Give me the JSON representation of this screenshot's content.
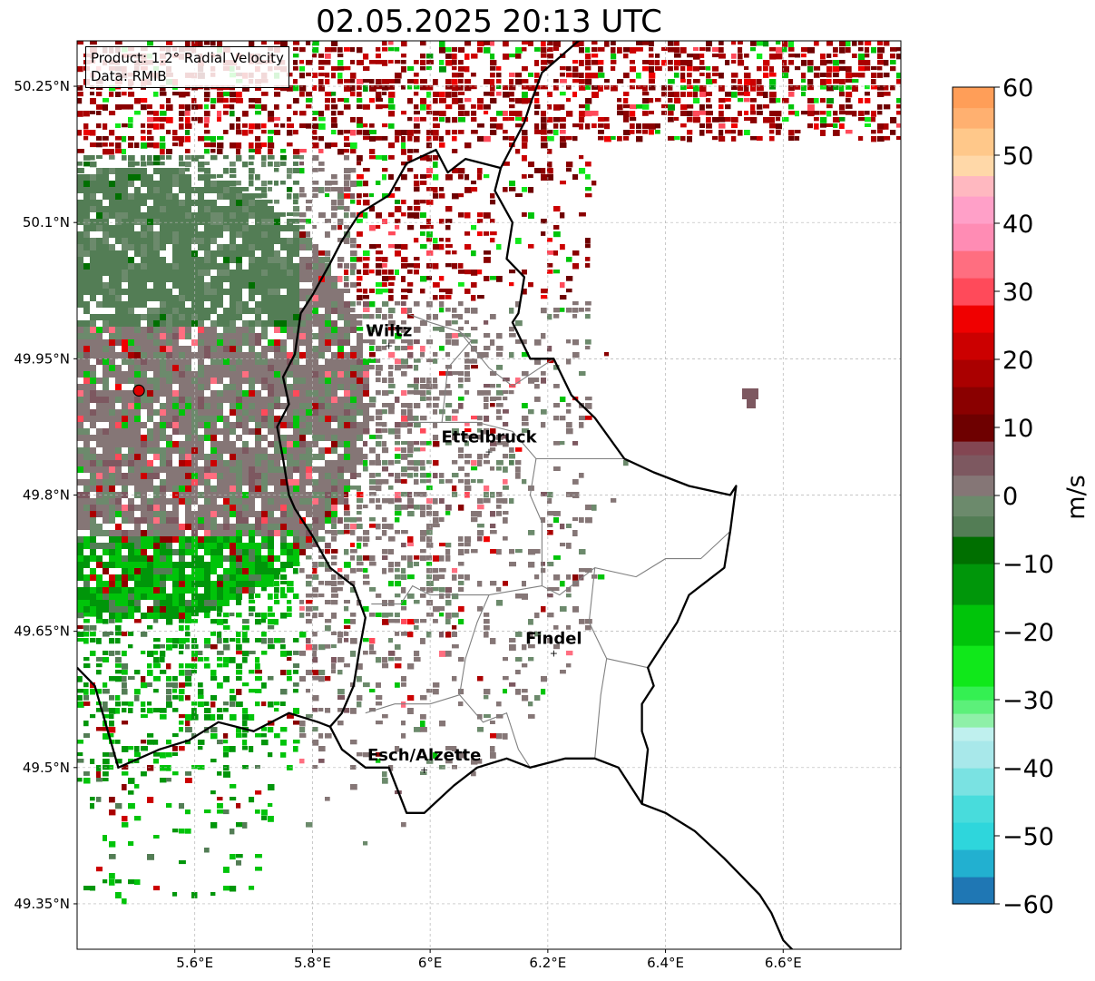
{
  "title": "02.05.2025 20:13 UTC",
  "info_box": {
    "product": "Product: 1.2° Radial Velocity",
    "data_source": "Data: RMIB"
  },
  "map": {
    "lon_range": [
      5.4,
      6.8
    ],
    "lat_range": [
      49.3,
      50.3
    ],
    "gridlines": true,
    "lon_ticks": [
      {
        "value": 5.6,
        "label": "5.6°E"
      },
      {
        "value": 5.8,
        "label": "5.8°E"
      },
      {
        "value": 6.0,
        "label": "6°E"
      },
      {
        "value": 6.2,
        "label": "6.2°E"
      },
      {
        "value": 6.4,
        "label": "6.4°E"
      },
      {
        "value": 6.6,
        "label": "6.6°E"
      }
    ],
    "lat_ticks": [
      {
        "value": 50.25,
        "label": "50.25°N"
      },
      {
        "value": 50.1,
        "label": "50.1°N"
      },
      {
        "value": 49.95,
        "label": "49.95°N"
      },
      {
        "value": 49.8,
        "label": "49.8°N"
      },
      {
        "value": 49.65,
        "label": "49.65°N"
      },
      {
        "value": 49.5,
        "label": "49.5°N"
      },
      {
        "value": 49.35,
        "label": "49.35°N"
      }
    ],
    "radar_site": {
      "lon": 5.505,
      "lat": 49.915,
      "color": "#e00000"
    },
    "cities": [
      {
        "name": "Wiltz",
        "lon": 5.93,
        "lat": 49.965
      },
      {
        "name": "Ettelbruck",
        "lon": 6.1,
        "lat": 49.848
      },
      {
        "name": "Findel",
        "lon": 6.21,
        "lat": 49.626
      },
      {
        "name": "Esch/Alzette",
        "lon": 5.99,
        "lat": 49.498
      }
    ],
    "border": [
      [
        5.96,
        50.165
      ],
      [
        6.01,
        50.18
      ],
      [
        6.03,
        50.155
      ],
      [
        6.06,
        50.17
      ],
      [
        6.12,
        50.16
      ],
      [
        6.11,
        50.135
      ],
      [
        6.14,
        50.1
      ],
      [
        6.13,
        50.06
      ],
      [
        6.16,
        50.04
      ],
      [
        6.15,
        50.0
      ],
      [
        6.14,
        49.99
      ],
      [
        6.17,
        49.95
      ],
      [
        6.21,
        49.95
      ],
      [
        6.24,
        49.91
      ],
      [
        6.28,
        49.885
      ],
      [
        6.33,
        49.84
      ],
      [
        6.38,
        49.825
      ],
      [
        6.44,
        49.81
      ],
      [
        6.51,
        49.8
      ],
      [
        6.52,
        49.81
      ],
      [
        6.51,
        49.76
      ],
      [
        6.5,
        49.72
      ],
      [
        6.44,
        49.69
      ],
      [
        6.42,
        49.66
      ],
      [
        6.37,
        49.61
      ],
      [
        6.38,
        49.59
      ],
      [
        6.36,
        49.57
      ],
      [
        6.36,
        49.54
      ],
      [
        6.37,
        49.52
      ],
      [
        6.36,
        49.46
      ],
      [
        6.32,
        49.5
      ],
      [
        6.28,
        49.51
      ],
      [
        6.23,
        49.51
      ],
      [
        6.17,
        49.5
      ],
      [
        6.13,
        49.51
      ],
      [
        6.08,
        49.5
      ],
      [
        6.04,
        49.48
      ],
      [
        5.99,
        49.45
      ],
      [
        5.96,
        49.45
      ],
      [
        5.93,
        49.5
      ],
      [
        5.89,
        49.5
      ],
      [
        5.85,
        49.52
      ],
      [
        5.83,
        49.545
      ],
      [
        5.85,
        49.56
      ],
      [
        5.87,
        49.59
      ],
      [
        5.88,
        49.63
      ],
      [
        5.89,
        49.665
      ],
      [
        5.87,
        49.7
      ],
      [
        5.83,
        49.72
      ],
      [
        5.8,
        49.755
      ],
      [
        5.77,
        49.785
      ],
      [
        5.76,
        49.8
      ],
      [
        5.75,
        49.84
      ],
      [
        5.74,
        49.875
      ],
      [
        5.76,
        49.9
      ],
      [
        5.75,
        49.93
      ],
      [
        5.77,
        49.955
      ],
      [
        5.78,
        50.0
      ],
      [
        5.8,
        50.02
      ],
      [
        5.83,
        50.055
      ],
      [
        5.85,
        50.08
      ],
      [
        5.87,
        50.1
      ],
      [
        5.88,
        50.11
      ],
      [
        5.93,
        50.13
      ],
      [
        5.96,
        50.165
      ]
    ],
    "border_north": [
      [
        6.12,
        50.16
      ],
      [
        6.16,
        50.21
      ],
      [
        6.17,
        50.23
      ],
      [
        6.19,
        50.265
      ],
      [
        6.27,
        50.31
      ]
    ],
    "border_france": [
      [
        5.4,
        49.61
      ],
      [
        5.43,
        49.59
      ],
      [
        5.47,
        49.5
      ],
      [
        5.54,
        49.52
      ],
      [
        5.59,
        49.53
      ],
      [
        5.64,
        49.55
      ],
      [
        5.7,
        49.54
      ],
      [
        5.76,
        49.56
      ],
      [
        5.81,
        49.55
      ],
      [
        5.83,
        49.545
      ]
    ],
    "border_southeast": [
      [
        6.36,
        49.46
      ],
      [
        6.4,
        49.45
      ],
      [
        6.45,
        49.43
      ],
      [
        6.5,
        49.4
      ],
      [
        6.56,
        49.36
      ],
      [
        6.58,
        49.34
      ],
      [
        6.6,
        49.31
      ],
      [
        6.63,
        49.29
      ]
    ],
    "cantons": [
      [
        [
          5.96,
          50.0
        ],
        [
          6.0,
          49.99
        ],
        [
          6.05,
          49.98
        ],
        [
          6.07,
          49.97
        ],
        [
          6.03,
          49.94
        ],
        [
          6.02,
          49.88
        ]
      ],
      [
        [
          5.95,
          49.88
        ],
        [
          6.02,
          49.88
        ],
        [
          6.08,
          49.88
        ],
        [
          6.14,
          49.87
        ],
        [
          6.18,
          49.84
        ],
        [
          6.25,
          49.84
        ],
        [
          6.33,
          49.84
        ]
      ],
      [
        [
          6.05,
          49.98
        ],
        [
          6.1,
          49.94
        ],
        [
          6.14,
          49.92
        ],
        [
          6.21,
          49.95
        ]
      ],
      [
        [
          6.18,
          49.84
        ],
        [
          6.17,
          49.8
        ],
        [
          6.19,
          49.77
        ],
        [
          6.19,
          49.7
        ],
        [
          6.22,
          49.69
        ],
        [
          6.28,
          49.72
        ],
        [
          6.35,
          49.71
        ],
        [
          6.4,
          49.73
        ],
        [
          6.46,
          49.73
        ],
        [
          6.51,
          49.76
        ]
      ],
      [
        [
          6.19,
          49.7
        ],
        [
          6.1,
          49.69
        ],
        [
          6.05,
          49.69
        ],
        [
          6.0,
          49.69
        ],
        [
          5.97,
          49.7
        ],
        [
          5.95,
          49.68
        ],
        [
          5.9,
          49.68
        ]
      ],
      [
        [
          6.1,
          49.69
        ],
        [
          6.08,
          49.66
        ],
        [
          6.06,
          49.62
        ],
        [
          6.05,
          49.58
        ],
        [
          6.09,
          49.55
        ],
        [
          6.13,
          49.56
        ],
        [
          6.15,
          49.52
        ],
        [
          6.17,
          49.5
        ]
      ],
      [
        [
          6.28,
          49.72
        ],
        [
          6.27,
          49.66
        ],
        [
          6.3,
          49.62
        ],
        [
          6.29,
          49.58
        ],
        [
          6.28,
          49.51
        ]
      ],
      [
        [
          6.05,
          49.58
        ],
        [
          6.0,
          49.57
        ],
        [
          5.94,
          49.57
        ],
        [
          5.89,
          49.56
        ]
      ],
      [
        [
          6.3,
          49.62
        ],
        [
          6.37,
          49.61
        ]
      ]
    ]
  },
  "colorbar": {
    "label": "m/s",
    "range": [
      -60,
      60
    ],
    "ticks": [
      60,
      50,
      40,
      30,
      20,
      10,
      0,
      -10,
      -20,
      -30,
      -40,
      -50,
      -60
    ],
    "tick_labels": [
      "60",
      "50",
      "40",
      "30",
      "20",
      "10",
      "0",
      "−10",
      "−20",
      "−30",
      "−40",
      "−50",
      "−60"
    ],
    "bands": [
      {
        "from": -60,
        "to": -56,
        "color": "#1f77b4"
      },
      {
        "from": -56,
        "to": -52,
        "color": "#22b0d0"
      },
      {
        "from": -52,
        "to": -48,
        "color": "#2ed6dc"
      },
      {
        "from": -48,
        "to": -44,
        "color": "#48dcdc"
      },
      {
        "from": -44,
        "to": -40,
        "color": "#7ae2e2"
      },
      {
        "from": -40,
        "to": -36,
        "color": "#a8e8ea"
      },
      {
        "from": -36,
        "to": -34,
        "color": "#bff0ee"
      },
      {
        "from": -34,
        "to": -32,
        "color": "#8ef0a8"
      },
      {
        "from": -32,
        "to": -30,
        "color": "#5cf07a"
      },
      {
        "from": -30,
        "to": -28,
        "color": "#34f052"
      },
      {
        "from": -28,
        "to": -22,
        "color": "#10e81a"
      },
      {
        "from": -22,
        "to": -16,
        "color": "#00c40a"
      },
      {
        "from": -16,
        "to": -10,
        "color": "#00960a"
      },
      {
        "from": -10,
        "to": -6,
        "color": "#006f00"
      },
      {
        "from": -6,
        "to": -3,
        "color": "#537d55"
      },
      {
        "from": -3,
        "to": 0,
        "color": "#6c8a6c"
      },
      {
        "from": 0,
        "to": 3,
        "color": "#857676"
      },
      {
        "from": 3,
        "to": 6,
        "color": "#7d5860"
      },
      {
        "from": 6,
        "to": 8,
        "color": "#834652"
      },
      {
        "from": 8,
        "to": 12,
        "color": "#6e0000"
      },
      {
        "from": 12,
        "to": 16,
        "color": "#8a0000"
      },
      {
        "from": 16,
        "to": 20,
        "color": "#aa0000"
      },
      {
        "from": 20,
        "to": 24,
        "color": "#cc0000"
      },
      {
        "from": 24,
        "to": 28,
        "color": "#f00000"
      },
      {
        "from": 28,
        "to": 32,
        "color": "#ff4a5a"
      },
      {
        "from": 32,
        "to": 36,
        "color": "#ff6e80"
      },
      {
        "from": 36,
        "to": 40,
        "color": "#ff8cb4"
      },
      {
        "from": 40,
        "to": 44,
        "color": "#ffa0c8"
      },
      {
        "from": 44,
        "to": 47,
        "color": "#ffb8c0"
      },
      {
        "from": 47,
        "to": 50,
        "color": "#ffd8a8"
      },
      {
        "from": 50,
        "to": 54,
        "color": "#ffc88a"
      },
      {
        "from": 54,
        "to": 57,
        "color": "#ffb070"
      },
      {
        "from": 57,
        "to": 60,
        "color": "#ff9e58"
      }
    ]
  },
  "colors": {
    "border": "#000000",
    "canton": "#808080",
    "grid": "#b4b4b4"
  }
}
